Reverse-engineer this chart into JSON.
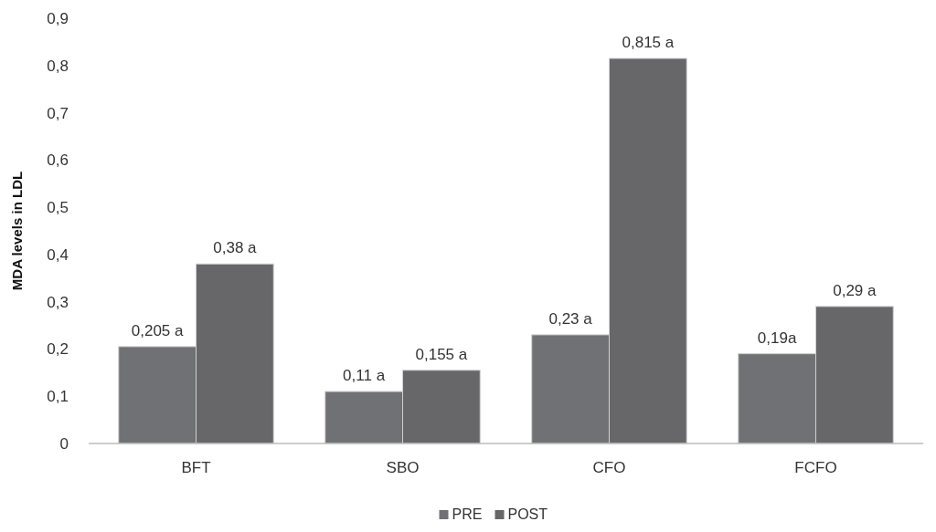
{
  "chart_data": {
    "type": "bar",
    "ylabel": "MDA levels in LDL",
    "categories": [
      "BFT",
      "SBO",
      "CFO",
      "FCFO"
    ],
    "series": [
      {
        "name": "PRE",
        "color": "#707174",
        "values": [
          0.205,
          0.11,
          0.23,
          0.19
        ],
        "value_labels": [
          "0,205 a",
          "0,11 a",
          "0,23 a",
          "0,19a"
        ]
      },
      {
        "name": "POST",
        "color": "#67676a",
        "values": [
          0.38,
          0.155,
          0.815,
          0.29
        ],
        "value_labels": [
          "0,38 a",
          "0,155 a",
          "0,815 a",
          "0,29 a"
        ]
      }
    ],
    "ylim": [
      0,
      0.9
    ],
    "yticks": [
      {
        "value": 0,
        "label": "0"
      },
      {
        "value": 0.1,
        "label": "0,1"
      },
      {
        "value": 0.2,
        "label": "0,2"
      },
      {
        "value": 0.3,
        "label": "0,3"
      },
      {
        "value": 0.4,
        "label": "0,4"
      },
      {
        "value": 0.5,
        "label": "0,5"
      },
      {
        "value": 0.6,
        "label": "0,6"
      },
      {
        "value": 0.7,
        "label": "0,7"
      },
      {
        "value": 0.8,
        "label": "0,8"
      },
      {
        "value": 0.9,
        "label": "0,9"
      }
    ],
    "grid": false,
    "legend": "bottom"
  }
}
